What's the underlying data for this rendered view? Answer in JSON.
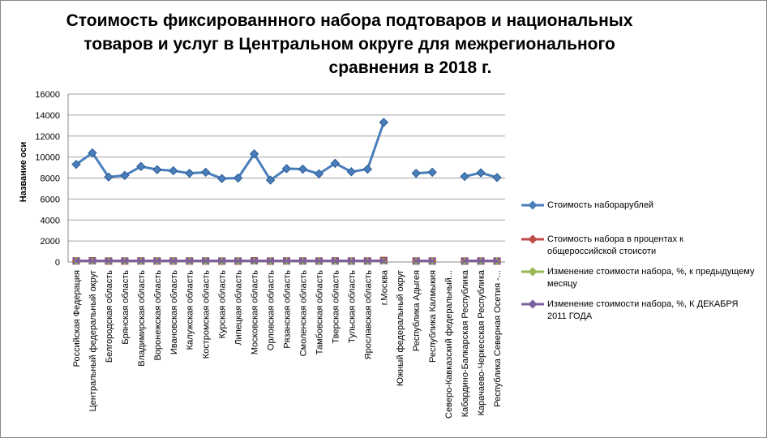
{
  "chart_data": {
    "type": "line",
    "title": [
      "Стоимость фиксированнного набора  подтоваров  и национальных",
      "товаров и услуг в Центральном округе для межрегионального",
      "сравнения в 2018 г."
    ],
    "ylabel": "Название оси",
    "ylim": [
      0,
      16000
    ],
    "yticks": [
      0,
      2000,
      4000,
      6000,
      8000,
      10000,
      12000,
      14000,
      16000
    ],
    "categories": [
      "Российская Федерация",
      "Центральный федеральный округ",
      "Белгородская область",
      "Брянская область",
      "Владимирская область",
      "Воронежская область",
      "Ивановская область",
      "Калужская область",
      "Костромская область",
      "Курская область",
      "Липецкая область",
      "Московская область",
      "Орловская область",
      "Рязанская область",
      "Смоленская область",
      "Тамбовская область",
      "Тверская область",
      "Тульская область",
      "Ярославская область",
      "г.Москва",
      "Южный федеральный округ",
      "Республика Адыгея",
      "Республика Калмыкия",
      "Северо-Кавказский федеральный...",
      "Кабардино-Балкарская Республика",
      "Карачаево-Черкесская Республика",
      "Республика Северная Осетия -..."
    ],
    "series": [
      {
        "name": "Стоимость наборарублей",
        "color": "#4a7ebb",
        "marker": "diamond",
        "values": [
          9300,
          10400,
          8100,
          8250,
          9100,
          8800,
          8700,
          8450,
          8550,
          7950,
          8000,
          10300,
          7800,
          8900,
          8850,
          8400,
          9400,
          8600,
          8850,
          13300,
          null,
          8450,
          8550,
          null,
          8150,
          8500,
          8050
        ]
      },
      {
        "name": "Стоимость набора в процентах к общероссийской стоисоти",
        "color": "#be4b48",
        "marker": "square",
        "values": [
          100,
          112,
          87,
          89,
          98,
          95,
          94,
          91,
          92,
          85,
          86,
          111,
          84,
          96,
          95,
          90,
          101,
          92,
          95,
          143,
          null,
          91,
          92,
          null,
          88,
          91,
          87
        ]
      },
      {
        "name": "Изменение стоимости набора, %, к предыдущему месяцу",
        "color": "#98b954",
        "marker": "triangle",
        "values": [
          100,
          100,
          100,
          100,
          100,
          100,
          100,
          100,
          100,
          100,
          100,
          100,
          100,
          100,
          100,
          100,
          100,
          100,
          100,
          100,
          null,
          100,
          100,
          null,
          100,
          100,
          100
        ]
      },
      {
        "name": "Изменение стоимости набора, %,   К ДЕКАБРЯ 2011 ГОДА",
        "color": "#7d60a0",
        "marker": "x",
        "values": [
          104,
          104,
          104,
          104,
          104,
          104,
          104,
          104,
          104,
          104,
          104,
          104,
          104,
          104,
          104,
          104,
          104,
          104,
          104,
          104,
          null,
          104,
          104,
          null,
          104,
          104,
          104
        ]
      }
    ]
  }
}
